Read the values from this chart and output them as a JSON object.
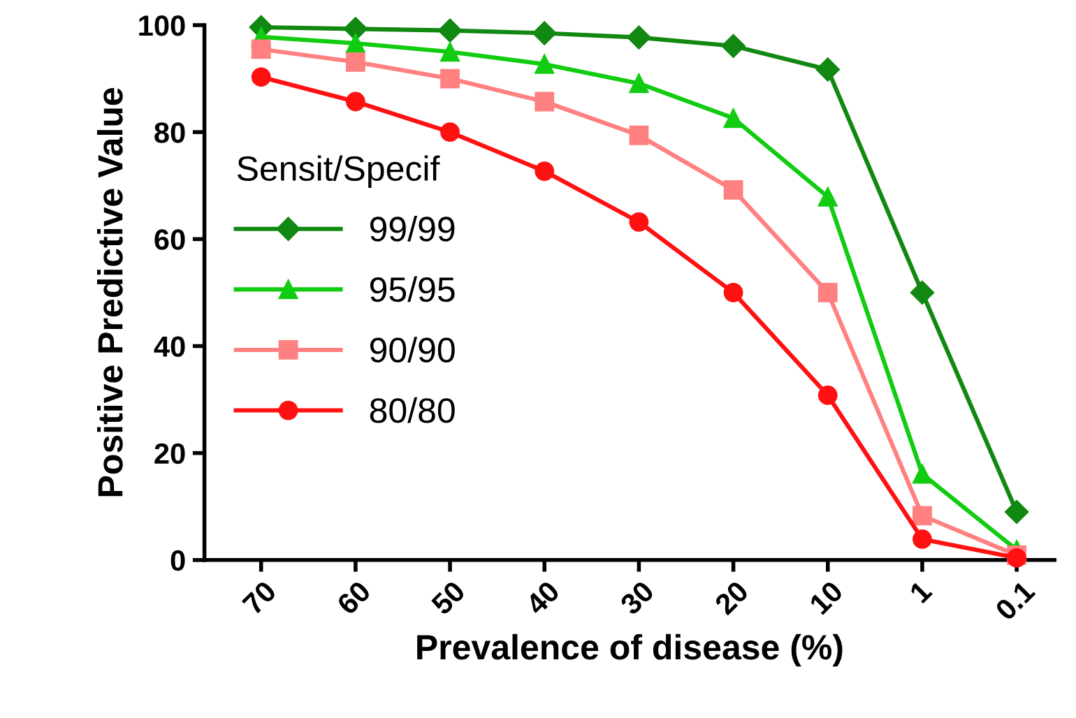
{
  "chart_data": {
    "type": "line",
    "xlabel": "Prevalence of disease (%)",
    "ylabel": "Positive Predictive Value",
    "categories": [
      "70",
      "60",
      "50",
      "40",
      "30",
      "20",
      "10",
      "1",
      "0.1"
    ],
    "series": [
      {
        "name": "99/99",
        "color": "#118811",
        "marker": "diamond",
        "values": [
          99.6,
          99.3,
          99.0,
          98.5,
          97.7,
          96.1,
          91.7,
          50.0,
          9.0
        ]
      },
      {
        "name": "95/95",
        "color": "#11cc11",
        "marker": "triangle",
        "values": [
          97.8,
          96.6,
          95.0,
          92.7,
          89.1,
          82.6,
          67.9,
          16.1,
          1.9
        ]
      },
      {
        "name": "90/90",
        "color": "#ff8080",
        "marker": "square",
        "values": [
          95.5,
          93.1,
          90.0,
          85.7,
          79.4,
          69.2,
          50.0,
          8.3,
          0.9
        ]
      },
      {
        "name": "80/80",
        "color": "#ff1111",
        "marker": "circle",
        "values": [
          90.3,
          85.7,
          80.0,
          72.7,
          63.2,
          50.0,
          30.8,
          3.9,
          0.4
        ]
      }
    ],
    "ylim": [
      0,
      100
    ],
    "yticks": [
      0,
      20,
      40,
      60,
      80,
      100
    ],
    "legend": "center left",
    "legend_title": "Sensit/Specif",
    "grid": false,
    "line_style": "solid"
  }
}
